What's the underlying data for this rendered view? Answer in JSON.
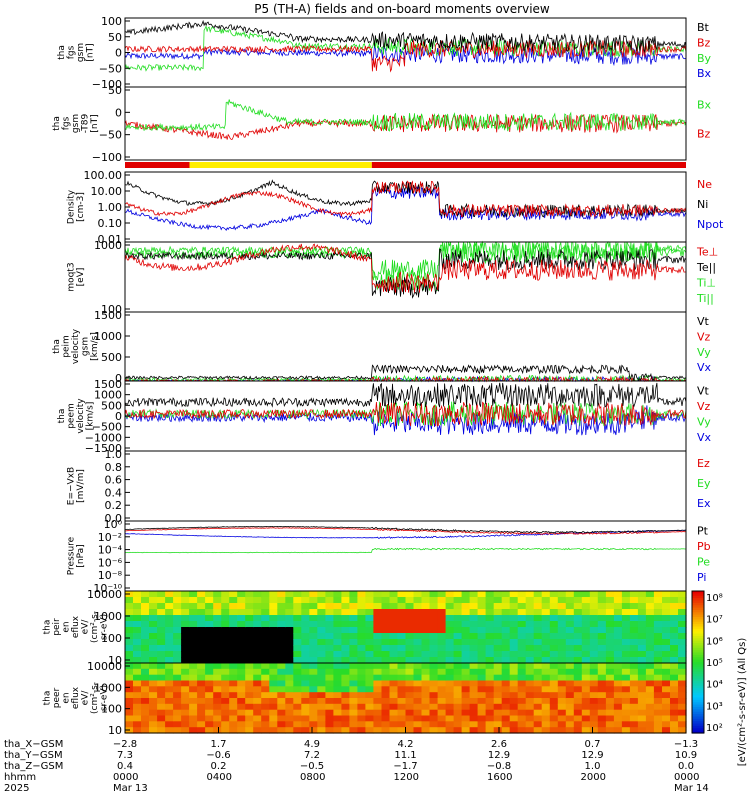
{
  "chart_data": {
    "type": "multi-panel-timeseries",
    "title": "P5 (TH-A) fields and on-board moments overview",
    "colors": {
      "black": "#000000",
      "red": "#e00000",
      "green": "#22dd22",
      "blue": "#0000e0",
      "yellow": "#ffee00"
    },
    "panels": [
      {
        "id": "fgs-gsm",
        "ylabel": [
          "tha",
          "fgs",
          "gsm",
          "[nT]"
        ],
        "yticks": [
          "100",
          "50",
          "0",
          "−50",
          "−100"
        ],
        "legend": [
          {
            "label": "Bt",
            "color": "black"
          },
          {
            "label": "Bz",
            "color": "red"
          },
          {
            "label": "By",
            "color": "green"
          },
          {
            "label": "Bx",
            "color": "blue"
          }
        ]
      },
      {
        "id": "fgs-gsm-t89",
        "ylabel": [
          "tha",
          "fgs",
          "gsm",
          "-T89",
          "[nT]"
        ],
        "yticks": [
          "50",
          "0",
          "−50",
          "−100"
        ],
        "legend": [
          {
            "label": "Bx",
            "color": "green"
          },
          {
            "label": "Bz",
            "color": "red"
          }
        ]
      },
      {
        "id": "density",
        "ylabel": [
          "Density",
          "[cm-3]"
        ],
        "yticks": [
          "100.00",
          "10.00",
          "1.00",
          "0.10",
          "0.01"
        ],
        "legend": [
          {
            "label": "Ne",
            "color": "red"
          },
          {
            "label": "Ni",
            "color": "black"
          },
          {
            "label": "Npot",
            "color": "blue"
          }
        ]
      },
      {
        "id": "temperature",
        "ylabel": [
          "moqt3",
          "[eV]"
        ],
        "yticks": [
          "1000",
          "100"
        ],
        "legend": [
          {
            "label": "Te⊥",
            "color": "red"
          },
          {
            "label": "Te||",
            "color": "black"
          },
          {
            "label": "Ti⊥",
            "color": "green"
          },
          {
            "label": "Ti||",
            "color": "green"
          }
        ]
      },
      {
        "id": "peim-velocity",
        "ylabel": [
          "tha",
          "peim",
          "velocity",
          "gsm",
          "[km/s]"
        ],
        "yticks": [
          "1500",
          "1000",
          "500",
          "0"
        ],
        "legend": [
          {
            "label": "Vt",
            "color": "black"
          },
          {
            "label": "Vz",
            "color": "red"
          },
          {
            "label": "Vy",
            "color": "green"
          },
          {
            "label": "Vx",
            "color": "blue"
          }
        ]
      },
      {
        "id": "peem-velocity",
        "ylabel": [
          "tha",
          "peem",
          "velocity",
          "[km/s]"
        ],
        "yticks": [
          "1500",
          "1000",
          "500",
          "0",
          "−500",
          "−1000",
          "−1500"
        ],
        "legend": [
          {
            "label": "Vt",
            "color": "black"
          },
          {
            "label": "Vz",
            "color": "red"
          },
          {
            "label": "Vy",
            "color": "green"
          },
          {
            "label": "Vx",
            "color": "blue"
          }
        ]
      },
      {
        "id": "efield",
        "ylabel": [
          "E=−VxB",
          "[mV/m]"
        ],
        "yticks": [
          "1.0",
          "0.8",
          "0.6",
          "0.4",
          "0.2",
          "0.0"
        ],
        "legend": [
          {
            "label": "Ez",
            "color": "red"
          },
          {
            "label": "Ey",
            "color": "green"
          },
          {
            "label": "Ex",
            "color": "blue"
          }
        ]
      },
      {
        "id": "pressure",
        "ylabel": [
          "Pressure",
          "[nPa]"
        ],
        "yticks": [
          "10⁰",
          "10⁻²",
          "10⁻⁴",
          "10⁻⁶",
          "10⁻⁸",
          "10⁻¹⁰"
        ],
        "legend": [
          {
            "label": "Pt",
            "color": "black"
          },
          {
            "label": "Pb",
            "color": "red"
          },
          {
            "label": "Pe",
            "color": "green"
          },
          {
            "label": "Pi",
            "color": "blue"
          }
        ]
      },
      {
        "id": "peir-eflux",
        "ylabel": [
          "tha",
          "peir",
          "en",
          "eflux",
          "eV/",
          "(cm²-s-",
          "sr-eV)"
        ],
        "yticks": [
          "10000",
          "1000",
          "100",
          "10"
        ],
        "legend": []
      },
      {
        "id": "peer-eflux",
        "ylabel": [
          "tha",
          "peer",
          "en",
          "eflux",
          "eV/",
          "(cm²-s-",
          "sr-eV)"
        ],
        "yticks": [
          "10000",
          "1000",
          "100",
          "10"
        ],
        "legend": []
      }
    ],
    "colorbar": {
      "ticks": [
        "10⁸",
        "10⁷",
        "10⁶",
        "10⁵",
        "10⁴",
        "10³",
        "10²"
      ],
      "label": "[eV/(cm²-s-sr-eV)] (All Qs)"
    },
    "mode_bar": [
      {
        "start": 0.0,
        "end": 0.115,
        "color": "red"
      },
      {
        "start": 0.115,
        "end": 0.44,
        "color": "yellow"
      },
      {
        "start": 0.44,
        "end": 1.0,
        "color": "red"
      }
    ],
    "xaxis": {
      "row_labels": [
        "tha_X−GSM",
        "tha_Y−GSM",
        "tha_Z−GSM",
        "hhmm",
        "2025"
      ],
      "ticks": [
        {
          "X": "−2.8",
          "Y": "7.3",
          "Z": "0.4",
          "hhmm": "0000",
          "date": "Mar 13"
        },
        {
          "X": "1.7",
          "Y": "−0.6",
          "Z": "0.2",
          "hhmm": "0400",
          "date": ""
        },
        {
          "X": "4.9",
          "Y": "7.2",
          "Z": "−0.5",
          "hhmm": "0800",
          "date": ""
        },
        {
          "X": "4.2",
          "Y": "11.1",
          "Z": "−1.7",
          "hhmm": "1200",
          "date": ""
        },
        {
          "X": "2.6",
          "Y": "12.9",
          "Z": "−0.8",
          "hhmm": "1600",
          "date": ""
        },
        {
          "X": "0.7",
          "Y": "12.9",
          "Z": "1.0",
          "hhmm": "2000",
          "date": ""
        },
        {
          "X": "−1.3",
          "Y": "10.9",
          "Z": "0.0",
          "hhmm": "0000",
          "date": "Mar 14"
        }
      ],
      "range_hours": [
        0,
        24
      ]
    }
  }
}
